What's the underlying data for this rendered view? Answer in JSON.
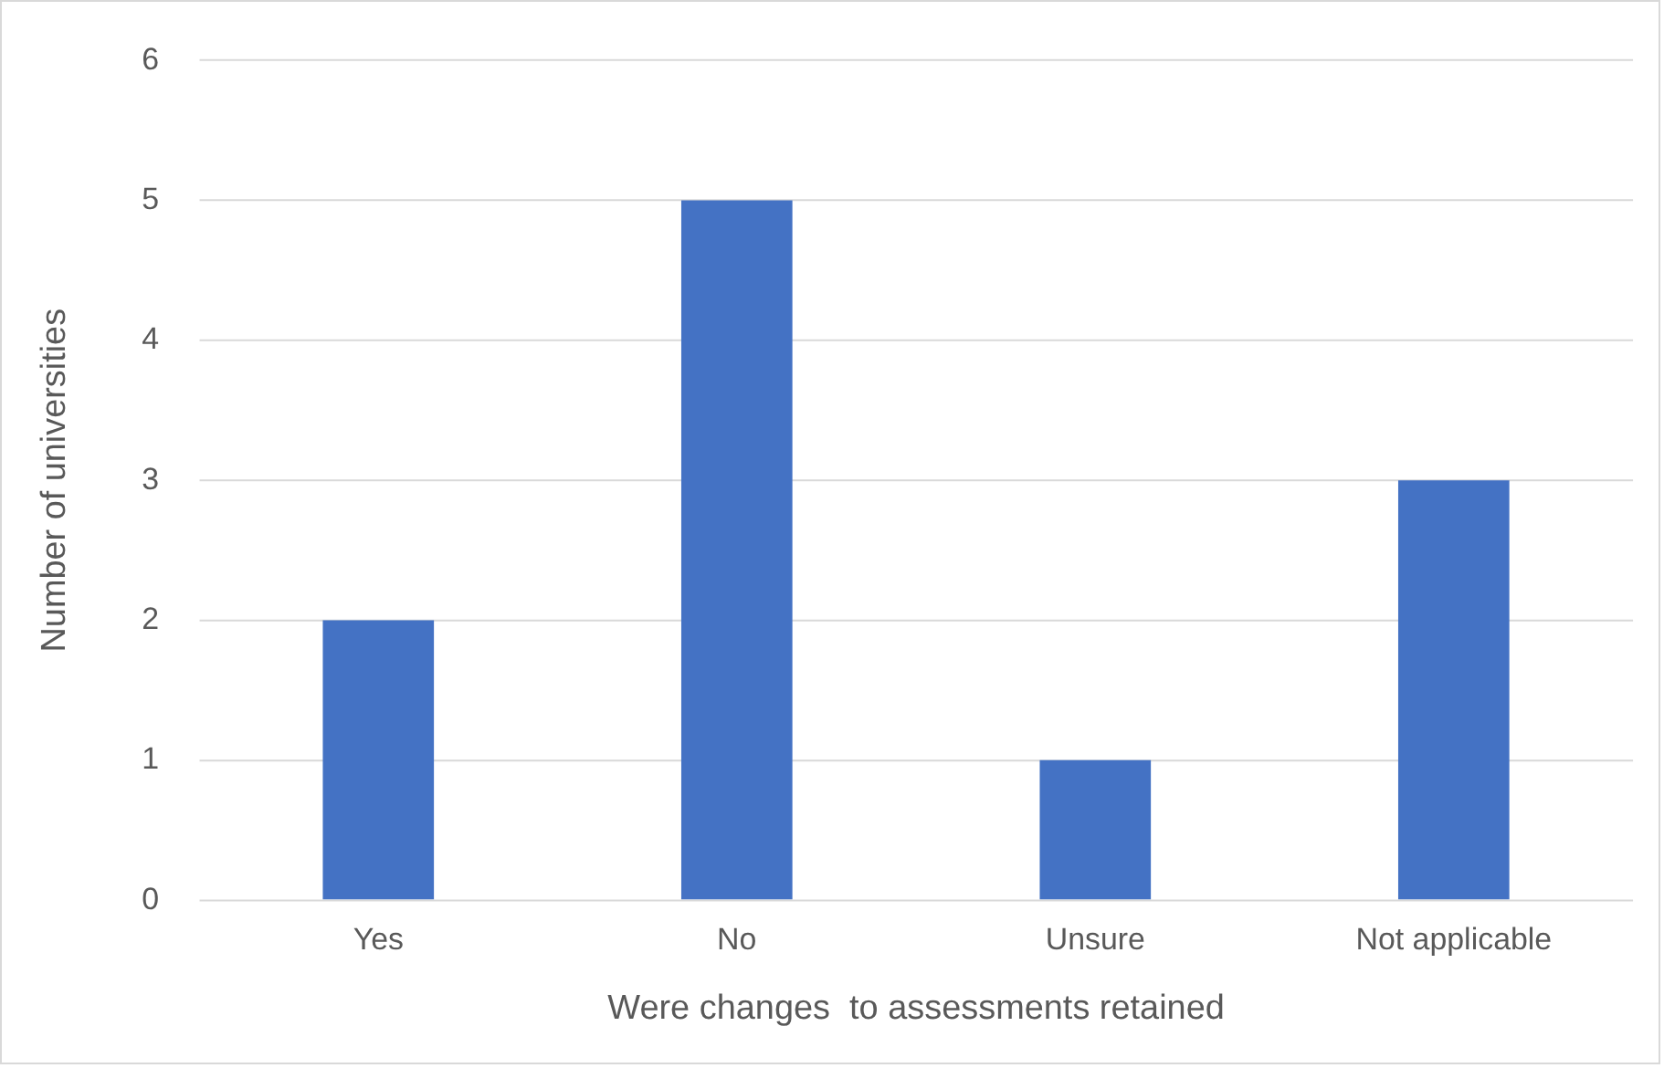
{
  "chart_data": {
    "type": "bar",
    "xlabel": "Were changes  to assessments retained",
    "ylabel": "Number of universities",
    "categories": [
      "Yes",
      "No",
      "Unsure",
      "Not applicable"
    ],
    "values": [
      2,
      5,
      1,
      3
    ],
    "color": "#4472c4",
    "ylim": [
      0,
      6
    ],
    "yticks": [
      0,
      1,
      2,
      3,
      4,
      5,
      6
    ],
    "grid": "y",
    "legend": false
  }
}
